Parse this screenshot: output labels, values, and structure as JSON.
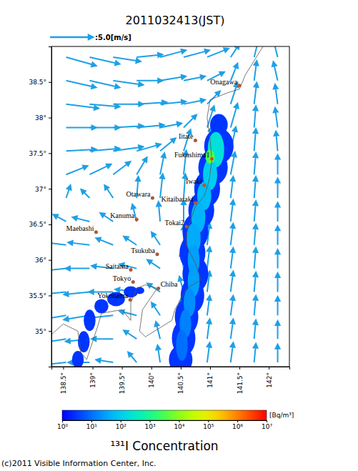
{
  "chart_data": {
    "type": "vector_map",
    "title": "2011032413(JST)",
    "xlim": [
      138.3,
      142.35
    ],
    "ylim": [
      34.5,
      39.0
    ],
    "xticks": [
      {
        "value": 138.5,
        "label": "138.5°"
      },
      {
        "value": 139,
        "label": "139°"
      },
      {
        "value": 139.5,
        "label": "139.5°"
      },
      {
        "value": 140,
        "label": "140°"
      },
      {
        "value": 140.5,
        "label": "140.5°"
      },
      {
        "value": 141,
        "label": "141°"
      },
      {
        "value": 141.5,
        "label": "141.5°"
      },
      {
        "value": 142,
        "label": "142°"
      }
    ],
    "yticks": [
      {
        "value": 35,
        "label": "35°"
      },
      {
        "value": 35.5,
        "label": "35.5°"
      },
      {
        "value": 36,
        "label": "36°"
      },
      {
        "value": 36.5,
        "label": "36.5°"
      },
      {
        "value": 37,
        "label": "37°"
      },
      {
        "value": 37.5,
        "label": "37.5°"
      },
      {
        "value": 38,
        "label": "38°"
      },
      {
        "value": 38.5,
        "label": "38.5°"
      }
    ],
    "wind": {
      "scale_arrow": {
        "value": 5,
        "label": ":5.0[m/s]"
      },
      "lon": [
        138.55,
        138.95,
        139.35,
        139.75,
        140.15,
        140.55,
        140.95,
        141.35,
        141.75,
        142.15
      ],
      "lat": [
        38.85,
        38.52,
        38.19,
        37.86,
        37.53,
        37.2,
        36.87,
        36.54,
        36.21,
        35.88,
        35.55,
        35.22,
        34.89,
        34.56
      ],
      "u": [
        [
          3.5,
          3.5,
          3.2,
          3.0,
          3.0,
          3.0,
          2.5,
          1.0,
          0.5,
          -0.5
        ],
        [
          3.5,
          3.5,
          3.5,
          3.0,
          3.0,
          2.5,
          2.0,
          0.8,
          0.3,
          -0.5
        ],
        [
          3.8,
          3.5,
          3.5,
          3.5,
          3.0,
          2.5,
          1.5,
          0.8,
          0.3,
          -0.3
        ],
        [
          3.5,
          3.5,
          3.5,
          3.2,
          2.5,
          1.5,
          0.8,
          0.8,
          0.2,
          -0.3
        ],
        [
          3.5,
          3.5,
          3.5,
          2.8,
          1.8,
          0.8,
          0.5,
          0.6,
          0.2,
          -0.2
        ],
        [
          2.5,
          2.5,
          2.0,
          1.2,
          0.5,
          0.3,
          0.5,
          0.5,
          0.2,
          0
        ],
        [
          0.5,
          -1.0,
          -1.0,
          0.2,
          0.3,
          0.2,
          0.3,
          0.3,
          0.2,
          0
        ],
        [
          -1.5,
          -2.0,
          -1.5,
          -0.5,
          -0.2,
          0,
          0.3,
          0.3,
          0.2,
          0
        ],
        [
          -2.5,
          -2.5,
          -2.0,
          -1.5,
          -1.0,
          0,
          0.3,
          0.3,
          0.2,
          0
        ],
        [
          -2.8,
          -2.8,
          -2.5,
          -2.0,
          -1.5,
          -0.3,
          0.3,
          0.3,
          0.2,
          0
        ],
        [
          -3.0,
          -3.0,
          -2.8,
          -2.5,
          -1.5,
          -0.5,
          0.3,
          0.3,
          0.2,
          0
        ],
        [
          -3.0,
          -3.0,
          -2.8,
          -2.0,
          -1.0,
          -0.3,
          0.3,
          0.3,
          0.2,
          0
        ],
        [
          -3.0,
          -2.8,
          -2.5,
          -1.5,
          -0.5,
          0,
          0.3,
          0.3,
          0.2,
          0
        ],
        [
          -2.8,
          -2.5,
          -2.0,
          -1.0,
          -0.3,
          0.1,
          0.3,
          0.3,
          0.2,
          0
        ]
      ],
      "v": [
        [
          -1.0,
          -0.8,
          -0.5,
          0.3,
          0.8,
          0.8,
          1.0,
          1.5,
          2.0,
          2.0
        ],
        [
          -0.8,
          -0.8,
          -0.5,
          0,
          0.5,
          0.5,
          1.0,
          2.0,
          2.3,
          2.2
        ],
        [
          -0.5,
          -0.3,
          0,
          0.2,
          0.3,
          0.5,
          1.5,
          2.5,
          2.5,
          2.3
        ],
        [
          0,
          0,
          0.2,
          0.3,
          0.5,
          1.5,
          2.5,
          2.8,
          2.5,
          2.3
        ],
        [
          0.2,
          0.3,
          0.5,
          0.8,
          1.5,
          2.5,
          2.8,
          2.8,
          2.6,
          2.3
        ],
        [
          1.0,
          1.2,
          1.5,
          2.0,
          2.5,
          2.8,
          2.8,
          2.6,
          2.5,
          2.3
        ],
        [
          1.5,
          1.0,
          1.5,
          2.5,
          2.8,
          2.8,
          2.6,
          2.5,
          2.5,
          2.3
        ],
        [
          0.8,
          0.5,
          1.0,
          2.0,
          2.3,
          2.5,
          2.5,
          2.5,
          2.4,
          2.2
        ],
        [
          0.3,
          0.3,
          0.8,
          1.0,
          1.5,
          2.3,
          2.5,
          2.5,
          2.4,
          2.2
        ],
        [
          -0.3,
          0,
          0.3,
          0.5,
          1.0,
          2.0,
          2.5,
          2.4,
          2.4,
          2.2
        ],
        [
          -0.3,
          -0.3,
          0,
          0.3,
          1.0,
          1.8,
          2.4,
          2.4,
          2.3,
          2.2
        ],
        [
          -0.5,
          -0.5,
          -0.3,
          0.5,
          1.5,
          2.0,
          2.3,
          2.3,
          2.3,
          2.2
        ],
        [
          -0.5,
          -0.3,
          0,
          1.0,
          2.0,
          2.2,
          2.3,
          2.3,
          2.2,
          2.1
        ],
        [
          -0.3,
          0,
          0.3,
          1.2,
          2.0,
          2.2,
          2.3,
          2.3,
          2.2,
          2.1
        ]
      ]
    },
    "plume": {
      "lon": [
        141.15,
        141.15,
        141.05,
        140.95,
        140.85,
        140.75,
        140.7,
        140.75,
        140.7,
        140.6,
        140.55,
        140.5,
        139.8,
        139.65,
        139.4,
        139.15,
        138.95,
        138.85,
        138.75,
        141.1,
        141.0,
        140.9,
        140.8,
        140.72,
        140.72,
        140.72,
        140.65,
        140.58,
        140.52,
        141.0,
        141.03
      ],
      "lat": [
        37.9,
        37.6,
        37.3,
        37.0,
        36.7,
        36.4,
        36.1,
        35.8,
        35.5,
        35.2,
        34.9,
        34.6,
        35.57,
        35.55,
        35.45,
        35.35,
        35.15,
        34.85,
        34.6,
        37.55,
        37.2,
        36.9,
        36.6,
        36.3,
        36.0,
        35.7,
        35.4,
        35.1,
        34.8,
        37.45,
        37.42
      ],
      "rlon": [
        0.15,
        0.25,
        0.25,
        0.22,
        0.22,
        0.22,
        0.22,
        0.22,
        0.2,
        0.2,
        0.2,
        0.2,
        0.08,
        0.12,
        0.15,
        0.12,
        0.1,
        0.1,
        0.1,
        0.14,
        0.12,
        0.12,
        0.12,
        0.12,
        0.1,
        0.1,
        0.1,
        0.1,
        0.1,
        0.08,
        0.04
      ],
      "rlat": [
        0.15,
        0.25,
        0.25,
        0.25,
        0.25,
        0.25,
        0.25,
        0.25,
        0.25,
        0.25,
        0.25,
        0.2,
        0.05,
        0.08,
        0.1,
        0.1,
        0.15,
        0.15,
        0.12,
        0.25,
        0.22,
        0.2,
        0.22,
        0.22,
        0.22,
        0.22,
        0.2,
        0.2,
        0.22,
        0.1,
        0.05
      ],
      "values": [
        3,
        3,
        3,
        3,
        3,
        3,
        3,
        3,
        3,
        3,
        3,
        3,
        3,
        3,
        3,
        3,
        3,
        3,
        3,
        200,
        100,
        60,
        50,
        40,
        30,
        30,
        20,
        15,
        10,
        3000,
        8000
      ]
    },
    "colorbar": {
      "title": "¹³¹I Concentration",
      "unit": "[Bq/m³]",
      "lim": [
        1,
        10000000
      ],
      "ticks": [
        {
          "value": 1,
          "label": "10⁰"
        },
        {
          "value": 10,
          "label": "10¹"
        },
        {
          "value": 100,
          "label": "10²"
        },
        {
          "value": 1000,
          "label": "10³"
        },
        {
          "value": 10000,
          "label": "10⁴"
        },
        {
          "value": 100000,
          "label": "10⁵"
        },
        {
          "value": 1000000,
          "label": "10⁶"
        },
        {
          "value": 10000000,
          "label": "10⁷"
        }
      ]
    },
    "cities": {
      "names": [
        "Onagawa",
        "Iitate",
        "Fukushima1",
        "Iwaki",
        "Kitaibaraki",
        "Tokai2",
        "Otawara",
        "Kanuma",
        "Maebashi",
        "Tsukuba",
        "Saitama",
        "Tokyo",
        "Chiba",
        "Yokohama"
      ],
      "lon": [
        141.5,
        140.75,
        141.03,
        140.9,
        140.75,
        140.6,
        140.02,
        139.75,
        139.06,
        140.1,
        139.65,
        139.69,
        140.12,
        139.64
      ],
      "lat": [
        38.45,
        37.68,
        37.42,
        37.05,
        36.8,
        36.47,
        36.87,
        36.57,
        36.39,
        36.08,
        35.86,
        35.69,
        35.6,
        35.44
      ]
    },
    "coastline": {
      "lon": [
        141.9,
        141.6,
        141.5,
        141.3,
        141.0,
        140.95,
        141.0,
        141.03,
        140.98,
        140.9,
        140.75,
        140.6,
        140.6,
        140.75,
        140.85,
        140.6,
        140.4,
        140.35,
        139.9,
        139.8,
        139.85,
        140.1,
        139.9,
        139.75,
        139.65,
        139.65,
        139.5,
        139.15,
        139.1,
        138.9,
        138.8,
        138.75,
        138.5,
        138.3
      ],
      "lat": [
        39.0,
        38.6,
        38.4,
        38.35,
        38.25,
        38.0,
        37.7,
        37.4,
        37.1,
        36.9,
        36.75,
        36.4,
        36.2,
        35.95,
        35.72,
        35.6,
        35.3,
        35.15,
        34.92,
        35.0,
        35.3,
        35.6,
        35.65,
        35.6,
        35.4,
        35.15,
        35.3,
        35.25,
        35.1,
        34.6,
        34.7,
        35.0,
        35.1,
        34.95
      ]
    },
    "source": "(c)2011 Visible Information Center, Inc."
  }
}
